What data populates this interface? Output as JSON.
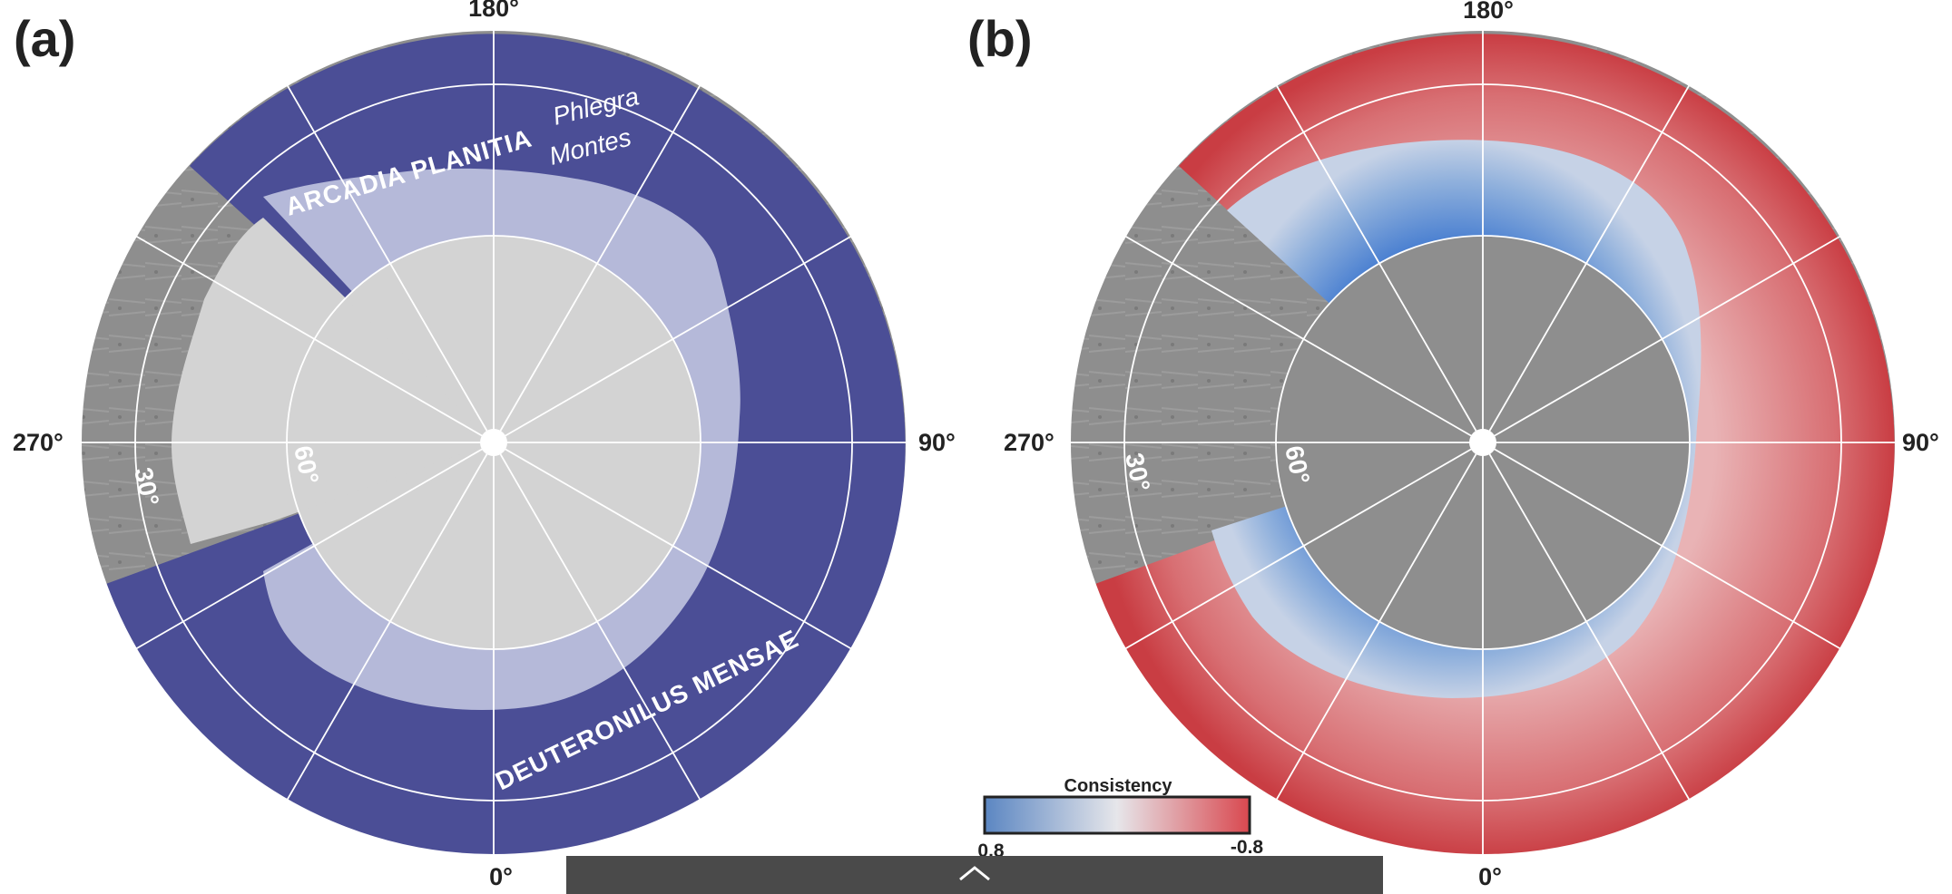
{
  "panels": [
    {
      "letter": "(a)",
      "lon_top": "180°",
      "lon_left": "270°",
      "lon_right": "90°",
      "lon_bottom": "0°",
      "lat_outer": "30°",
      "lat_inner": "60°",
      "regions": {
        "arcadia": "ARCADIA PLANITIA",
        "phlegra_1": "Phlegra",
        "phlegra_2": "Montes",
        "deuteronilus": "DEUTERONILUS MENSAE"
      }
    },
    {
      "letter": "(b)",
      "lon_top": "180°",
      "lon_left": "270°",
      "lon_right": "90°",
      "lon_bottom": "0°",
      "lat_outer": "30°",
      "lat_inner": "60°"
    }
  ],
  "colorbar": {
    "title": "Consistency",
    "min_label": "0.8",
    "max_label": "-0.8",
    "color_low": "#5b86c2",
    "color_mid": "#e6e6ea",
    "color_high": "#d9484f"
  },
  "colors": {
    "map_a_outer": "#4b4e96",
    "map_a_ring": "#b5b9d9",
    "map_a_core": "#d3d3d3",
    "map_b_red": "#cc4a4e",
    "map_b_blue": "#4a7fd0",
    "terrain_gray": "#8e8e8e"
  },
  "icons": {
    "bottom_bar": "chevron-up-icon"
  }
}
